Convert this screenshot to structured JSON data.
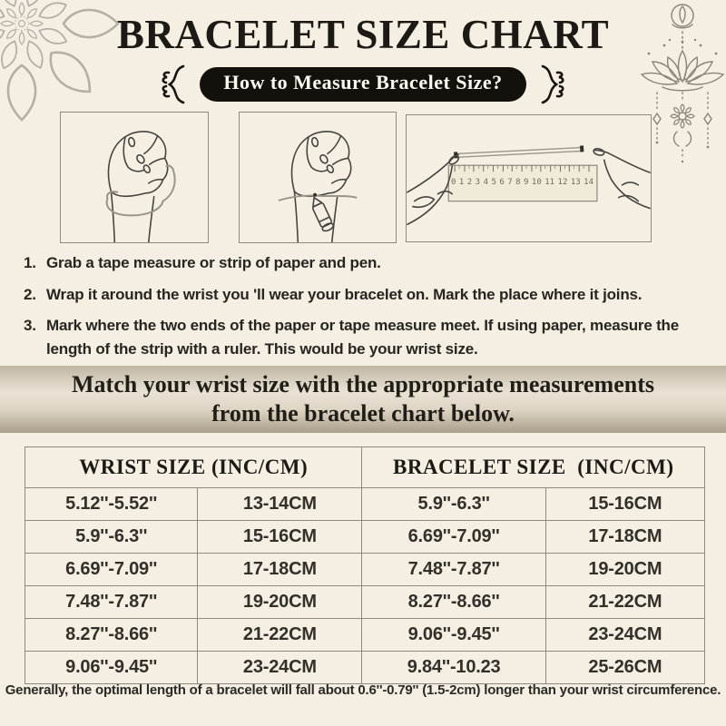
{
  "header": {
    "title": "BRACELET SIZE CHART",
    "pill_label": "How to Measure Bracelet Size?"
  },
  "steps": [
    {
      "num": "1.",
      "text": "Grab a tape measure or strip of paper and pen."
    },
    {
      "num": "2.",
      "text": "Wrap it around the wrist you 'll wear your bracelet on. Mark the place where it joins."
    },
    {
      "num": "3.",
      "text": "Mark where the two ends of the paper or tape measure meet. If using paper, measure the length of the strip with a ruler. This would be your wrist size."
    }
  ],
  "banner": {
    "line1": "Match your wrist size with the appropriate measurements",
    "line2": "from the bracelet chart below."
  },
  "size_table": {
    "headers": [
      "WRIST SIZE (INC/CM)",
      "BRACELET SIZE  (INC/CM)"
    ],
    "rows": [
      [
        "5.12''-5.52''",
        "13-14CM",
        "5.9''-6.3''",
        "15-16CM"
      ],
      [
        "5.9''-6.3''",
        "15-16CM",
        "6.69''-7.09''",
        "17-18CM"
      ],
      [
        "6.69''-7.09''",
        "17-18CM",
        "7.48''-7.87''",
        "19-20CM"
      ],
      [
        "7.48''-7.87''",
        "19-20CM",
        "8.27''-8.66''",
        "21-22CM"
      ],
      [
        "8.27''-8.66''",
        "21-22CM",
        "9.06''-9.45''",
        "23-24CM"
      ],
      [
        "9.06''-9.45''",
        "23-24CM",
        "9.84''-10.23",
        "25-26CM"
      ]
    ]
  },
  "footer": {
    "note": "Generally, the optimal length of a bracelet will fall about 0.6''-0.79'' (1.5-2cm) longer than your wrist circumference."
  },
  "illustrations": {
    "ruler_numbers": [
      "0",
      "1",
      "2",
      "3",
      "4",
      "5",
      "6",
      "7",
      "8",
      "9",
      "10",
      "11",
      "12",
      "13",
      "14"
    ],
    "step1_icon": "fist-with-tape-measure",
    "step2_icon": "fist-with-pen-marking",
    "step3_icon": "hands-measuring-strip-with-ruler"
  },
  "colors": {
    "background": "#f4efe2",
    "accent_black": "#14110c",
    "banner_top": "#c0b6a4",
    "banner_mid": "#e9e2d4",
    "banner_bottom": "#a89e8a",
    "table_border": "#8e897e",
    "mandala_gray": "#b4b0a7",
    "lotus_gray": "#8a8479"
  }
}
